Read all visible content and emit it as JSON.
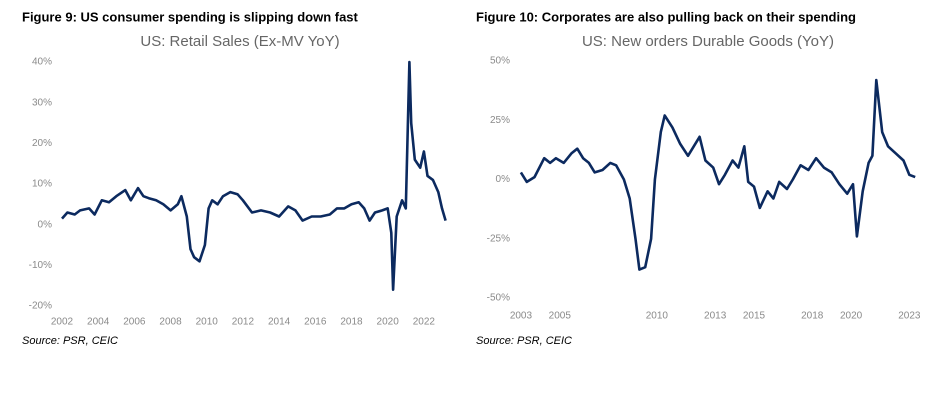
{
  "chart_data": [
    {
      "type": "line",
      "title": "Figure 9:   US consumer spending is slipping down fast",
      "subtitle": "US: Retail Sales (Ex-MV YoY)",
      "source": "Source: PSR, CEIC",
      "color": "#0c2a5f",
      "xlim": [
        2002,
        2023.5
      ],
      "xticks": [
        2002,
        2004,
        2006,
        2008,
        2010,
        2012,
        2014,
        2016,
        2018,
        2020,
        2022
      ],
      "ylim": [
        -20,
        40
      ],
      "yticks": [
        {
          "value": -20,
          "label": "-20%"
        },
        {
          "value": -10,
          "label": "-10%"
        },
        {
          "value": 0,
          "label": "0%"
        },
        {
          "value": 10,
          "label": "10%"
        },
        {
          "value": 20,
          "label": "20%"
        },
        {
          "value": 30,
          "label": "30%"
        },
        {
          "value": 40,
          "label": "40%"
        }
      ],
      "series": [
        {
          "name": "Retail Sales (Ex-MV YoY)",
          "color": "#0c2a5f",
          "x": [
            2002.0,
            2002.3,
            2002.7,
            2003.0,
            2003.5,
            2003.8,
            2004.2,
            2004.6,
            2005.0,
            2005.5,
            2005.8,
            2006.2,
            2006.5,
            2006.8,
            2007.2,
            2007.6,
            2008.0,
            2008.4,
            2008.6,
            2008.9,
            2009.1,
            2009.3,
            2009.6,
            2009.9,
            2010.1,
            2010.3,
            2010.6,
            2010.9,
            2011.3,
            2011.7,
            2012.0,
            2012.5,
            2013.0,
            2013.5,
            2014.0,
            2014.5,
            2014.9,
            2015.3,
            2015.8,
            2016.3,
            2016.8,
            2017.2,
            2017.6,
            2018.0,
            2018.4,
            2018.7,
            2019.0,
            2019.3,
            2019.7,
            2020.0,
            2020.2,
            2020.3,
            2020.5,
            2020.8,
            2021.0,
            2021.2,
            2021.3,
            2021.5,
            2021.8,
            2022.0,
            2022.2,
            2022.5,
            2022.8,
            2023.0,
            2023.2
          ],
          "values": [
            1.5,
            3,
            2.5,
            3.5,
            4,
            2.5,
            6,
            5.5,
            7,
            8.5,
            6,
            9,
            7,
            6.5,
            6,
            5,
            3.5,
            5,
            7,
            2,
            -6,
            -8,
            -9,
            -5,
            4,
            6,
            5,
            7,
            8,
            7.5,
            6,
            3,
            3.5,
            3,
            2,
            4.5,
            3.5,
            1,
            2,
            2,
            2.5,
            4,
            4,
            5,
            5.5,
            4,
            1,
            3,
            3.5,
            4,
            -2,
            -16,
            2,
            6,
            4,
            40,
            25,
            16,
            14,
            18,
            12,
            11,
            8,
            4,
            1
          ]
        }
      ]
    },
    {
      "type": "line",
      "title": "Figure 10:   Corporates are also pulling back on their spending",
      "subtitle": "US: New orders Durable Goods (YoY)",
      "source": "Source: PSR, CEIC",
      "color": "#0c2a5f",
      "xlim": [
        2002.9,
        2023.6
      ],
      "xticks": [
        2003,
        2005,
        2010,
        2013,
        2015,
        2018,
        2020,
        2023
      ],
      "ylim": [
        -50,
        50
      ],
      "yticks": [
        {
          "value": -50,
          "label": "-50%"
        },
        {
          "value": -25,
          "label": "-25%"
        },
        {
          "value": 0,
          "label": "0%"
        },
        {
          "value": 25,
          "label": "25%"
        },
        {
          "value": 50,
          "label": "50%"
        }
      ],
      "series": [
        {
          "name": "New orders Durable Goods (YoY)",
          "color": "#0c2a5f",
          "x": [
            2003.0,
            2003.3,
            2003.7,
            2004.2,
            2004.5,
            2004.8,
            2005.2,
            2005.6,
            2005.9,
            2006.2,
            2006.5,
            2006.8,
            2007.2,
            2007.6,
            2007.9,
            2008.3,
            2008.6,
            2008.9,
            2009.1,
            2009.4,
            2009.7,
            2009.9,
            2010.2,
            2010.4,
            2010.8,
            2011.2,
            2011.6,
            2011.9,
            2012.2,
            2012.5,
            2012.9,
            2013.2,
            2013.5,
            2013.9,
            2014.2,
            2014.5,
            2014.7,
            2015.0,
            2015.3,
            2015.7,
            2016.0,
            2016.3,
            2016.7,
            2017.0,
            2017.4,
            2017.8,
            2018.2,
            2018.6,
            2019.0,
            2019.4,
            2019.8,
            2020.1,
            2020.3,
            2020.6,
            2020.9,
            2021.1,
            2021.3,
            2021.6,
            2021.9,
            2022.3,
            2022.7,
            2023.0,
            2023.3
          ],
          "values": [
            3,
            -1,
            1,
            9,
            7,
            9,
            7,
            11,
            13,
            9,
            7,
            3,
            4,
            7,
            6,
            0,
            -8,
            -25,
            -38,
            -37,
            -25,
            0,
            20,
            27,
            22,
            15,
            10,
            14,
            18,
            8,
            5,
            -2,
            2,
            8,
            5,
            14,
            -1,
            -3,
            -12,
            -5,
            -8,
            -1,
            -4,
            0,
            6,
            4,
            9,
            5,
            3,
            -2,
            -6,
            -2,
            -24,
            -5,
            7,
            10,
            42,
            20,
            14,
            11,
            8,
            2,
            1
          ]
        }
      ]
    }
  ]
}
